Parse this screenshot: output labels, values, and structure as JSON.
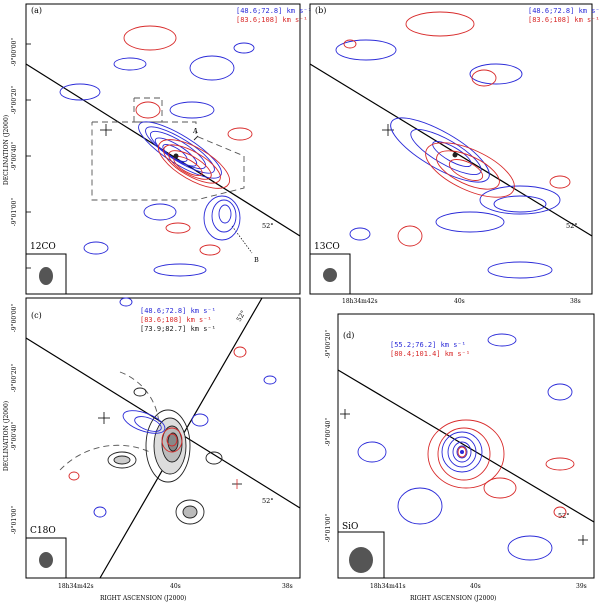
{
  "axes": {
    "y_label": "DECLINATION (J2000)",
    "x_label": "RIGHT ASCENSION (J2000)",
    "y_ticks_top": [
      "-9°00'00\"",
      "-9°00'20\"",
      "-9°00'40\"",
      "-9°01'00\""
    ],
    "y_ticks_bottom": [
      "-9°00'00\"",
      "-9°00'20\"",
      "-9°00'40\"",
      "-9°01'00\""
    ],
    "y_ticks_d": [
      "-9°00'20\"",
      "-9°00'40\"",
      "-9°01'00\""
    ],
    "x_ticks_cd": [
      "18h34m42s",
      "40s",
      "38s"
    ],
    "x_ticks_b": [
      "18h34m42s",
      "40s",
      "38s"
    ],
    "x_ticks_d": [
      "18h34m41s",
      "40s",
      "39s"
    ]
  },
  "panels": {
    "a": {
      "label": "(a)",
      "molecule": "12CO",
      "vel_blue": "[48.6;72.8]  km s⁻¹",
      "vel_red": "[83.6;108]  km s⁻¹",
      "angle": "52°",
      "marker_a": "A",
      "marker_b": "B"
    },
    "b": {
      "label": "(b)",
      "molecule": "13CO",
      "vel_blue": "[48.6;72.8]  km s⁻¹",
      "vel_red": "[83.6;108]  km s⁻¹",
      "angle": "52°"
    },
    "c": {
      "label": "(c)",
      "molecule": "C18O",
      "vel_blue": "[48.6;72.8]  km s⁻¹",
      "vel_red": "[83.6;108]  km s⁻¹",
      "vel_black": "[73.9;82.7]  km s⁻¹",
      "angle": "52°",
      "angle2": "52°"
    },
    "d": {
      "label": "(d)",
      "molecule": "SiO",
      "vel_blue": "[55.2;76.2]  km s⁻¹",
      "vel_red": "[80.4;101.4]  km s⁻¹",
      "angle": "52°"
    }
  },
  "colors": {
    "blue": "#2a2ad8",
    "red": "#d82a2a",
    "black": "#222222"
  }
}
